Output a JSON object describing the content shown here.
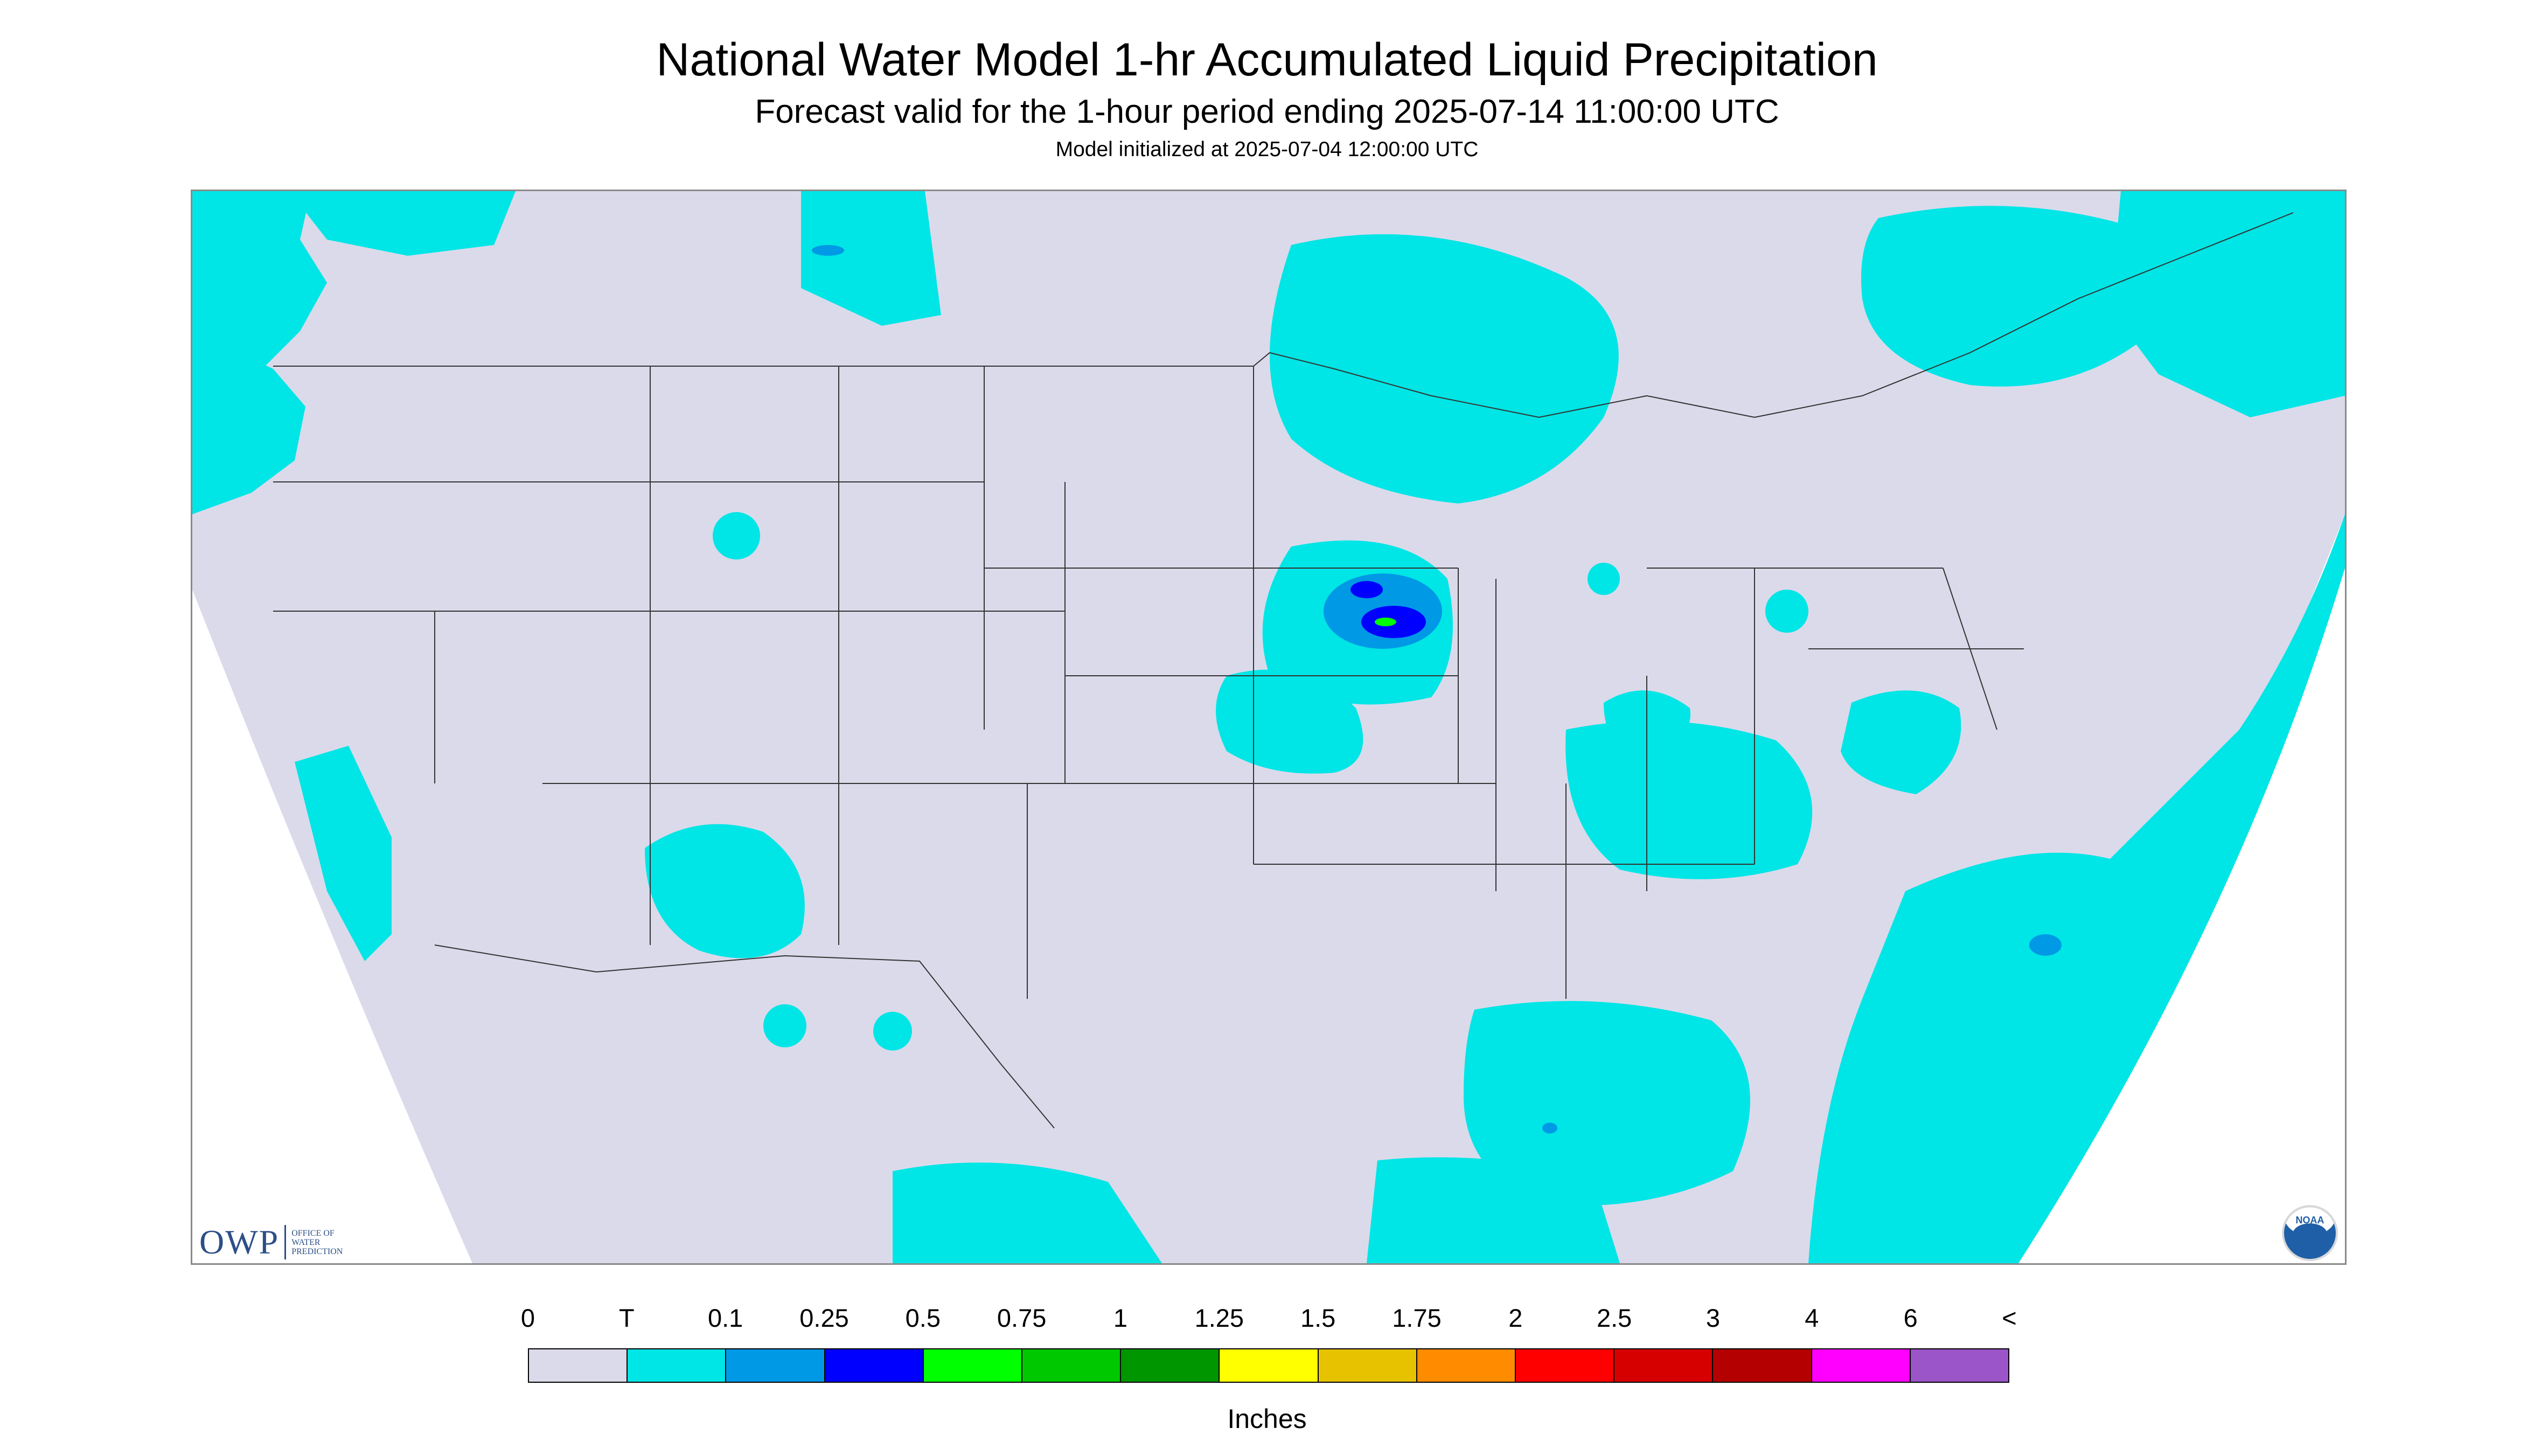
{
  "title": "National Water Model 1-hr Accumulated Liquid Precipitation",
  "subtitle": "Forecast valid for the 1-hour period ending 2025-07-14 11:00:00 UTC",
  "init_line": "Model initialized at 2025-07-04 12:00:00 UTC",
  "legend": {
    "labels": [
      "0",
      "T",
      "0.1",
      "0.25",
      "0.5",
      "0.75",
      "1",
      "1.25",
      "1.5",
      "1.75",
      "2",
      "2.5",
      "3",
      "4",
      "6",
      "<"
    ],
    "colors": [
      "#dadaeb",
      "#00e5e5",
      "#0099e6",
      "#0000ff",
      "#00ff00",
      "#00c800",
      "#009600",
      "#ffff00",
      "#e6c200",
      "#ff8c00",
      "#ff0000",
      "#d60000",
      "#b40000",
      "#ff00ff",
      "#9b55c8"
    ],
    "units": "Inches"
  },
  "colors": {
    "no_precip": "#dadaeb",
    "trace": "#00e5e5",
    "light": "#0099e6",
    "moderate": "#0000ff",
    "heavy": "#00ff00",
    "state_lines": "#333333"
  },
  "logos": {
    "owp_mark": "OWP",
    "owp_text": [
      "OFFICE OF",
      "WATER",
      "PREDICTION"
    ],
    "noaa": "NOAA"
  }
}
